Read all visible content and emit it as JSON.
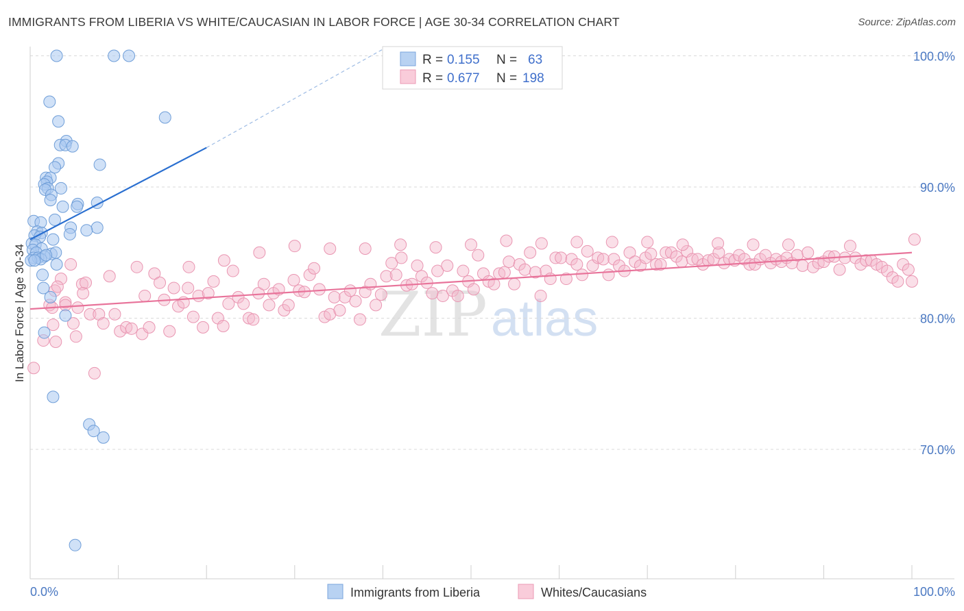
{
  "title": "IMMIGRANTS FROM LIBERIA VS WHITE/CAUCASIAN IN LABOR FORCE | AGE 30-34 CORRELATION CHART",
  "source": "Source: ZipAtlas.com",
  "watermark": {
    "zip": "ZIP",
    "atlas": "atlas"
  },
  "chart_data": {
    "type": "scatter",
    "title": "IMMIGRANTS FROM LIBERIA VS WHITE/CAUCASIAN IN LABOR FORCE | AGE 30-34 CORRELATION CHART",
    "xlabel": "",
    "ylabel": "In Labor Force | Age 30-34",
    "xlim": [
      0,
      100
    ],
    "ylim": [
      60.5,
      101.5
    ],
    "x_tick_labels": [
      "0.0%",
      "100.0%"
    ],
    "y_ticks": [
      70,
      80,
      90,
      100
    ],
    "y_tick_labels": [
      "70.0%",
      "80.0%",
      "90.0%",
      "100.0%"
    ],
    "grid": "horizontal dashed",
    "legend_position": "top-center",
    "colors": {
      "liberia": "#a9c8f0",
      "liberia_line": "#2a6fd0",
      "white": "#f5b8cc",
      "white_line": "#e8739a"
    },
    "stats": [
      {
        "r_label": "R = ",
        "r": "0.155",
        "n_label": "N = ",
        "n": "63"
      },
      {
        "r_label": "R = ",
        "r": "0.677",
        "n_label": "N = ",
        "n": "198"
      }
    ],
    "series": [
      {
        "name": "Immigrants from Liberia",
        "trend": {
          "x": [
            0,
            20
          ],
          "y": [
            86.0,
            93.0
          ],
          "dashed_to": [
            40,
            100.5
          ]
        },
        "points": [
          [
            3.0,
            100
          ],
          [
            9.5,
            100
          ],
          [
            11.2,
            100
          ],
          [
            2.2,
            96.5
          ],
          [
            3.2,
            95
          ],
          [
            15.3,
            95.3
          ],
          [
            4.1,
            93.5
          ],
          [
            3.4,
            93.2
          ],
          [
            4.0,
            93.2
          ],
          [
            4.8,
            93.1
          ],
          [
            7.9,
            91.7
          ],
          [
            3.2,
            91.8
          ],
          [
            2.8,
            91.5
          ],
          [
            1.8,
            90.7
          ],
          [
            2.3,
            90.7
          ],
          [
            1.9,
            90.4
          ],
          [
            1.6,
            90.2
          ],
          [
            2.0,
            89.9
          ],
          [
            1.7,
            89.8
          ],
          [
            3.5,
            89.9
          ],
          [
            2.4,
            89.4
          ],
          [
            2.3,
            89
          ],
          [
            5.4,
            88.7
          ],
          [
            7.6,
            88.8
          ],
          [
            3.7,
            88.5
          ],
          [
            5.3,
            88.5
          ],
          [
            0.4,
            87.4
          ],
          [
            1.2,
            87.3
          ],
          [
            2.8,
            87.5
          ],
          [
            4.6,
            86.9
          ],
          [
            7.6,
            86.9
          ],
          [
            6.4,
            86.7
          ],
          [
            0.8,
            86.6
          ],
          [
            1.3,
            86.5
          ],
          [
            0.5,
            86.3
          ],
          [
            1.1,
            86.2
          ],
          [
            4.5,
            86.4
          ],
          [
            2.6,
            86.0
          ],
          [
            0.2,
            85.7
          ],
          [
            0.6,
            85.6
          ],
          [
            1.3,
            85.3
          ],
          [
            0.3,
            85.2
          ],
          [
            0.7,
            85.0
          ],
          [
            2.4,
            84.9
          ],
          [
            2.9,
            85.0
          ],
          [
            1.6,
            84.7
          ],
          [
            0.4,
            84.6
          ],
          [
            0.9,
            84.6
          ],
          [
            1.2,
            84.5
          ],
          [
            0.1,
            84.4
          ],
          [
            0.5,
            84.4
          ],
          [
            3.0,
            84.1
          ],
          [
            1.4,
            83.3
          ],
          [
            1.5,
            82.3
          ],
          [
            2.3,
            81.6
          ],
          [
            4.0,
            80.2
          ],
          [
            1.6,
            78.9
          ],
          [
            2.6,
            74.0
          ],
          [
            6.7,
            71.9
          ],
          [
            7.2,
            71.4
          ],
          [
            8.3,
            70.9
          ],
          [
            5.1,
            62.7
          ],
          [
            1.8,
            84.8
          ]
        ]
      },
      {
        "name": "Whites/Caucasians",
        "trend": {
          "x": [
            0,
            100
          ],
          "y": [
            80.7,
            85.0
          ]
        },
        "points": [
          [
            0.4,
            76.2
          ],
          [
            1.5,
            78.3
          ],
          [
            2.2,
            81.0
          ],
          [
            2.8,
            82.1
          ],
          [
            3.5,
            83.0
          ],
          [
            4.0,
            81.2
          ],
          [
            4.6,
            84.1
          ],
          [
            4.9,
            79.6
          ],
          [
            5.4,
            80.8
          ],
          [
            5.9,
            82.6
          ],
          [
            6.3,
            82.7
          ],
          [
            6.8,
            80.3
          ],
          [
            7.3,
            75.8
          ],
          [
            7.8,
            80.3
          ],
          [
            8.3,
            79.6
          ],
          [
            9.0,
            83.2
          ],
          [
            9.6,
            80.3
          ],
          [
            10.2,
            79.0
          ],
          [
            10.9,
            79.3
          ],
          [
            11.5,
            79.2
          ],
          [
            12.1,
            83.9
          ],
          [
            12.7,
            78.8
          ],
          [
            13.0,
            81.7
          ],
          [
            13.5,
            79.3
          ],
          [
            14.1,
            83.4
          ],
          [
            14.7,
            82.7
          ],
          [
            15.2,
            81.4
          ],
          [
            15.8,
            79.0
          ],
          [
            16.3,
            82.3
          ],
          [
            16.8,
            80.9
          ],
          [
            17.4,
            81.2
          ],
          [
            17.9,
            82.3
          ],
          [
            18.5,
            80.1
          ],
          [
            19.1,
            81.7
          ],
          [
            19.6,
            79.3
          ],
          [
            20.2,
            81.9
          ],
          [
            20.8,
            82.8
          ],
          [
            21.3,
            80.0
          ],
          [
            21.9,
            79.4
          ],
          [
            22.5,
            81.1
          ],
          [
            23.0,
            83.6
          ],
          [
            23.6,
            81.6
          ],
          [
            24.2,
            81.1
          ],
          [
            24.8,
            80.0
          ],
          [
            25.3,
            79.9
          ],
          [
            25.9,
            81.9
          ],
          [
            26.5,
            82.6
          ],
          [
            27.1,
            81.0
          ],
          [
            27.6,
            81.9
          ],
          [
            28.2,
            82.2
          ],
          [
            28.8,
            80.6
          ],
          [
            29.3,
            81.0
          ],
          [
            29.9,
            82.9
          ],
          [
            30.5,
            82.1
          ],
          [
            31.1,
            82.0
          ],
          [
            31.7,
            83.3
          ],
          [
            32.2,
            83.8
          ],
          [
            32.8,
            82.2
          ],
          [
            33.4,
            80.1
          ],
          [
            34.0,
            80.3
          ],
          [
            34.5,
            81.6
          ],
          [
            35.1,
            80.6
          ],
          [
            35.7,
            81.6
          ],
          [
            36.3,
            82.1
          ],
          [
            36.9,
            81.3
          ],
          [
            37.4,
            79.9
          ],
          [
            38.0,
            82.0
          ],
          [
            38.6,
            82.6
          ],
          [
            39.2,
            81.0
          ],
          [
            39.8,
            81.8
          ],
          [
            40.4,
            83.2
          ],
          [
            41.0,
            84.2
          ],
          [
            41.5,
            83.3
          ],
          [
            42.1,
            84.6
          ],
          [
            42.7,
            82.5
          ],
          [
            43.3,
            82.6
          ],
          [
            43.9,
            84.0
          ],
          [
            44.4,
            83.2
          ],
          [
            45.0,
            82.7
          ],
          [
            45.6,
            81.9
          ],
          [
            46.2,
            83.6
          ],
          [
            46.8,
            81.7
          ],
          [
            47.3,
            84.0
          ],
          [
            47.9,
            82.1
          ],
          [
            48.5,
            81.7
          ],
          [
            49.1,
            83.6
          ],
          [
            49.7,
            82.8
          ],
          [
            50.3,
            82.2
          ],
          [
            50.8,
            84.8
          ],
          [
            51.4,
            83.4
          ],
          [
            52.0,
            82.8
          ],
          [
            52.6,
            82.6
          ],
          [
            53.2,
            83.4
          ],
          [
            53.8,
            83.5
          ],
          [
            54.3,
            84.3
          ],
          [
            54.9,
            82.6
          ],
          [
            55.5,
            84.1
          ],
          [
            56.1,
            83.7
          ],
          [
            56.7,
            85.0
          ],
          [
            57.3,
            83.5
          ],
          [
            57.9,
            81.7
          ],
          [
            58.5,
            83.6
          ],
          [
            59.0,
            83.0
          ],
          [
            59.6,
            84.6
          ],
          [
            60.2,
            84.6
          ],
          [
            60.8,
            83.0
          ],
          [
            61.4,
            84.5
          ],
          [
            62.0,
            84.1
          ],
          [
            62.6,
            83.3
          ],
          [
            63.2,
            85.1
          ],
          [
            63.8,
            84.0
          ],
          [
            64.4,
            84.6
          ],
          [
            65.0,
            84.5
          ],
          [
            65.6,
            83.3
          ],
          [
            66.2,
            84.5
          ],
          [
            66.8,
            84.0
          ],
          [
            67.4,
            83.6
          ],
          [
            68.0,
            85.0
          ],
          [
            68.6,
            84.3
          ],
          [
            69.2,
            84.0
          ],
          [
            69.8,
            84.6
          ],
          [
            70.4,
            84.9
          ],
          [
            71.0,
            84.1
          ],
          [
            71.5,
            84.1
          ],
          [
            72.1,
            85.0
          ],
          [
            72.7,
            85.0
          ],
          [
            73.3,
            84.7
          ],
          [
            73.9,
            84.3
          ],
          [
            74.5,
            85.1
          ],
          [
            75.1,
            84.5
          ],
          [
            75.7,
            84.5
          ],
          [
            76.3,
            84.1
          ],
          [
            76.9,
            84.4
          ],
          [
            77.5,
            84.5
          ],
          [
            78.1,
            85.0
          ],
          [
            78.7,
            84.2
          ],
          [
            79.3,
            84.5
          ],
          [
            79.9,
            84.4
          ],
          [
            80.4,
            84.8
          ],
          [
            81.0,
            84.5
          ],
          [
            81.6,
            84.1
          ],
          [
            82.2,
            84.1
          ],
          [
            82.8,
            84.5
          ],
          [
            83.4,
            84.8
          ],
          [
            84.0,
            84.2
          ],
          [
            84.6,
            84.5
          ],
          [
            85.2,
            84.3
          ],
          [
            85.8,
            84.6
          ],
          [
            86.4,
            84.2
          ],
          [
            87.0,
            84.8
          ],
          [
            87.6,
            84.0
          ],
          [
            88.2,
            85.0
          ],
          [
            88.8,
            83.9
          ],
          [
            89.4,
            84.2
          ],
          [
            90.0,
            84.3
          ],
          [
            90.6,
            84.7
          ],
          [
            91.2,
            84.7
          ],
          [
            91.8,
            83.7
          ],
          [
            92.4,
            84.6
          ],
          [
            93.0,
            85.5
          ],
          [
            93.6,
            84.6
          ],
          [
            94.2,
            84.1
          ],
          [
            94.8,
            84.4
          ],
          [
            95.4,
            84.4
          ],
          [
            96.0,
            84.1
          ],
          [
            96.6,
            83.9
          ],
          [
            97.2,
            83.6
          ],
          [
            97.8,
            83.1
          ],
          [
            98.4,
            82.8
          ],
          [
            99.0,
            84.1
          ],
          [
            99.6,
            83.7
          ],
          [
            100.0,
            82.8
          ],
          [
            100.3,
            86.0
          ],
          [
            2.6,
            79.5
          ],
          [
            2.9,
            78.2
          ],
          [
            4.0,
            81.0
          ],
          [
            5.2,
            78.6
          ],
          [
            6.0,
            81.9
          ],
          [
            3.1,
            82.4
          ],
          [
            2.5,
            80.8
          ],
          [
            18.0,
            83.9
          ],
          [
            22.0,
            84.4
          ],
          [
            26.0,
            85.0
          ],
          [
            30.0,
            85.5
          ],
          [
            34.0,
            85.3
          ],
          [
            38.0,
            85.3
          ],
          [
            42.0,
            85.6
          ],
          [
            46.0,
            85.4
          ],
          [
            50.0,
            85.6
          ],
          [
            54.0,
            85.9
          ],
          [
            58.0,
            85.7
          ],
          [
            62.0,
            85.8
          ],
          [
            66.0,
            85.8
          ],
          [
            70.0,
            85.8
          ],
          [
            74.0,
            85.6
          ],
          [
            78.0,
            85.7
          ],
          [
            82.0,
            85.6
          ],
          [
            86.0,
            85.6
          ]
        ]
      }
    ]
  }
}
